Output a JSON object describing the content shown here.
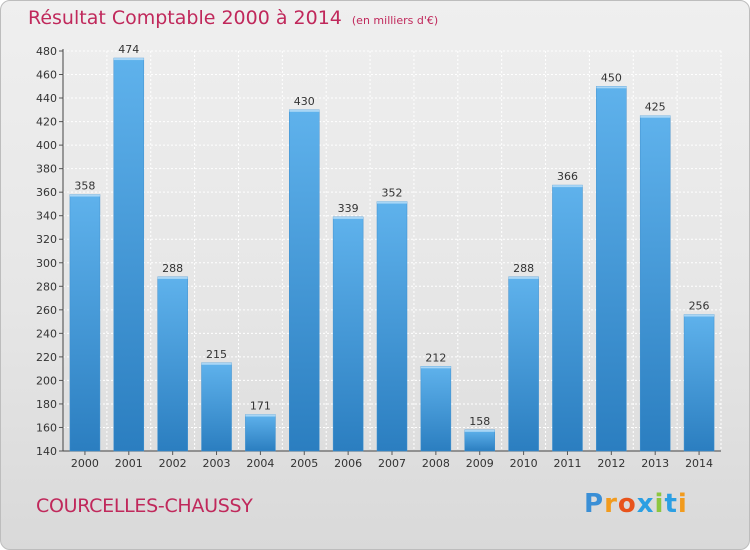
{
  "title": "Résultat Comptable 2000 à 2014",
  "subtitle": "(en milliers d'€)",
  "city": "COURCELLES-CHAUSSY",
  "logo": {
    "letters": [
      "P",
      "r",
      "o",
      "x",
      "i",
      "t",
      "i"
    ],
    "colors": [
      "#3a8fd6",
      "#f29b1d",
      "#e8531b",
      "#2b9fe3",
      "#8dc63f",
      "#2b9fe3",
      "#f29b1d"
    ]
  },
  "colors": {
    "bar_light": "#5fb2ec",
    "bar_dark": "#2b7ec0",
    "title": "#c0285b"
  },
  "chart_data": {
    "type": "bar",
    "categories": [
      "2000",
      "2001",
      "2002",
      "2003",
      "2004",
      "2005",
      "2006",
      "2007",
      "2008",
      "2009",
      "2010",
      "2011",
      "2012",
      "2013",
      "2014"
    ],
    "values": [
      358,
      474,
      288,
      215,
      171,
      430,
      339,
      352,
      212,
      158,
      288,
      366,
      450,
      425,
      256
    ],
    "ylim": [
      140,
      480
    ],
    "yticks": [
      140,
      160,
      180,
      200,
      220,
      240,
      260,
      280,
      300,
      320,
      340,
      360,
      380,
      400,
      420,
      440,
      460,
      480
    ],
    "grid": true
  }
}
